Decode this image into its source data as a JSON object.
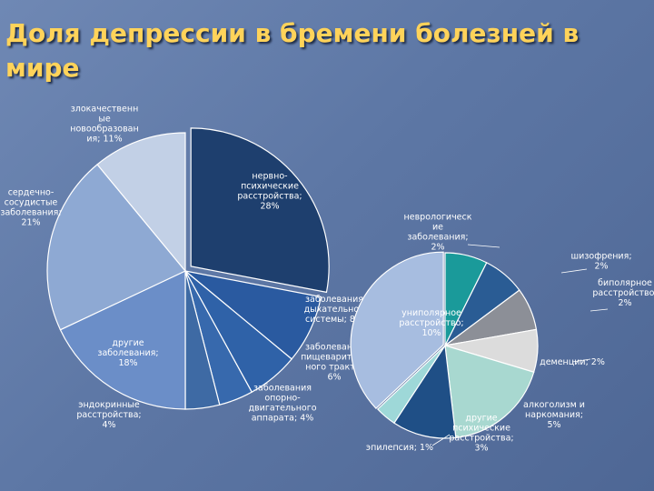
{
  "slide": {
    "title": "Доля депрессии в бремени болезней в мире"
  },
  "chart_data": [
    {
      "type": "pie",
      "categories": [
        "нервно-психические расстройства",
        "заболевания дыхательной системы",
        "заболевания пищеварительного тракта",
        "заболевания опорно-двигательного аппарата",
        "эндокринные расстройства",
        "другие заболевания",
        "сердечно-сосудистые заболевания",
        "злокачественные новообразования"
      ],
      "values": [
        28,
        8,
        6,
        4,
        4,
        18,
        21,
        11
      ],
      "colors": [
        "#1e3f6e",
        "#2a5aa0",
        "#2f62a8",
        "#3769ad",
        "#3e6aa4",
        "#6b8ec8",
        "#8ea9d3",
        "#c2d0e6"
      ],
      "data_labels": [
        [
          "нервно-",
          "психические",
          "расстройства;",
          "28%"
        ],
        [
          "заболевания",
          "дыхательной",
          "системы; 8%"
        ],
        [
          "заболевания",
          "пищеваритель",
          "ного тракта;",
          "6%"
        ],
        [
          "заболевания",
          "опорно-",
          "двигательного",
          "аппарата; 4%"
        ],
        [
          "эндокринные",
          "расстройства;",
          "4%"
        ],
        [
          "другие",
          "заболевания;",
          "18%"
        ],
        [
          "сердечно-",
          "сосудистые",
          "заболевания;",
          "21%"
        ],
        [
          "злокачественн",
          "ые",
          "новообразован",
          "ия; 11%"
        ]
      ]
    },
    {
      "type": "pie",
      "categories": [
        "неврологические заболевания",
        "шизофрения",
        "биполярное расстройство",
        "деменции",
        "алкоголизм и наркомания",
        "другие психические расстройства",
        "эпилепсия",
        "униполярное расстройство"
      ],
      "values": [
        2,
        2,
        2,
        2,
        5,
        3,
        1,
        10
      ],
      "colors": [
        "#1a9a9a",
        "#2a5c94",
        "#8c8f97",
        "#dcdcdc",
        "#a8d8d0",
        "#1f4f86",
        "#9ed8d8",
        "#a7bde0"
      ],
      "data_labels": [
        [
          "неврологическ",
          "ие",
          "заболевания;",
          "2%"
        ],
        [
          "шизофрения;",
          "2%"
        ],
        [
          "биполярное",
          "расстройство;",
          "2%"
        ],
        [
          "деменции; 2%"
        ],
        [
          "алкоголизм и",
          "наркомания;",
          "5%"
        ],
        [
          "другие",
          "психические",
          "расстройства;",
          "3%"
        ],
        [
          "эпилепсия; 1%"
        ],
        [
          "униполярное",
          "расстройство;",
          "10%"
        ]
      ]
    }
  ]
}
